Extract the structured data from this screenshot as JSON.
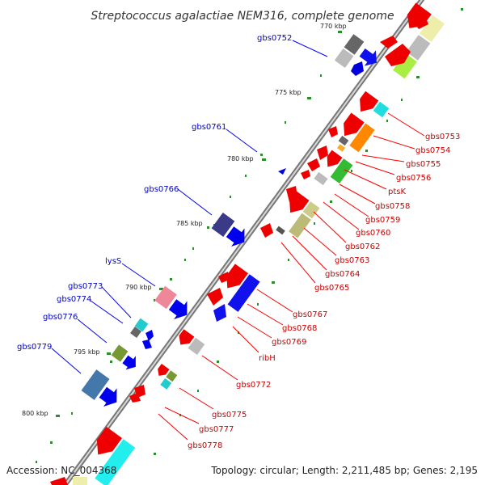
{
  "title": "Streptococcus agalactiae NEM316, complete genome",
  "footer": {
    "accession": "Accession: NC_004368",
    "info": "Topology: circular; Length: 2,211,485 bp; Genes: 2,195"
  },
  "ticks": [
    "770 kbp",
    "775 kbp",
    "780 kbp",
    "785 kbp",
    "790 kbp",
    "795 kbp",
    "800 kbp"
  ],
  "labels_outer": [
    "gbs0752",
    "gbs0761",
    "gbs0766",
    "lysS",
    "gbs0773",
    "gbs0774",
    "gbs0776",
    "gbs0779"
  ],
  "labels_inner": [
    "gbs0753",
    "gbs0754",
    "gbs0755",
    "gbs0756",
    "ptsK",
    "gbs0758",
    "gbs0759",
    "gbs0760",
    "gbs0762",
    "gbs0763",
    "gbs0764",
    "gbs0765",
    "gbs0767",
    "gbs0768",
    "gbs0769",
    "ribH",
    "gbs0772",
    "gbs0775",
    "gbs0777",
    "gbs0778"
  ],
  "colors": {
    "outer_label": "#0000cc",
    "inner_label": "#cc0000",
    "outer_line": "#0000ff",
    "inner_line": "#ff0000",
    "tick": "#2e8b2e",
    "backbone": "#888888"
  }
}
